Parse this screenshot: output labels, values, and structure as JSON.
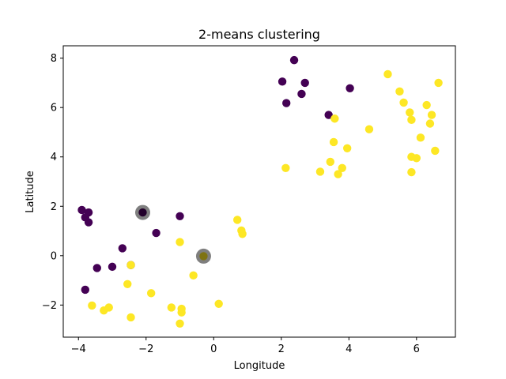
{
  "chart_data": {
    "type": "scatter",
    "title": "2-means clustering",
    "xlabel": "Longitude",
    "ylabel": "Latitude",
    "xlim": [
      -4.45,
      7.15
    ],
    "ylim": [
      -3.3,
      8.5
    ],
    "xticks": [
      -4,
      -2,
      0,
      2,
      4,
      6
    ],
    "yticks": [
      -2,
      0,
      2,
      4,
      6,
      8
    ],
    "grid": false,
    "colors": {
      "cluster_0": "#440154",
      "cluster_1": "#fde725",
      "centroid": "#000000"
    },
    "series": [
      {
        "cluster": 0,
        "color": "#440154",
        "points": [
          [
            -3.9,
            1.85
          ],
          [
            -3.8,
            1.55
          ],
          [
            -3.7,
            1.75
          ],
          [
            -3.7,
            1.35
          ],
          [
            -3.45,
            -0.5
          ],
          [
            -3.0,
            -0.45
          ],
          [
            -2.7,
            0.3
          ],
          [
            -2.45,
            -0.38
          ],
          [
            -2.1,
            1.75
          ],
          [
            -1.7,
            0.92
          ],
          [
            -1.0,
            1.6
          ],
          [
            -3.8,
            -1.38
          ],
          [
            2.03,
            7.05
          ],
          [
            2.15,
            6.18
          ],
          [
            2.38,
            7.92
          ],
          [
            2.6,
            6.55
          ],
          [
            2.7,
            7.0
          ],
          [
            3.4,
            5.7
          ],
          [
            4.03,
            6.78
          ]
        ]
      },
      {
        "cluster": 1,
        "color": "#fde725",
        "points": [
          [
            -3.6,
            -2.02
          ],
          [
            -3.25,
            -2.22
          ],
          [
            -3.1,
            -2.1
          ],
          [
            -2.55,
            -1.15
          ],
          [
            -2.45,
            -2.5
          ],
          [
            -2.45,
            -0.38
          ],
          [
            -1.85,
            -1.52
          ],
          [
            -1.25,
            -2.1
          ],
          [
            -1.0,
            -2.75
          ],
          [
            -0.95,
            -2.15
          ],
          [
            -0.95,
            -2.3
          ],
          [
            -1.0,
            0.55
          ],
          [
            -0.6,
            -0.8
          ],
          [
            0.15,
            -1.95
          ],
          [
            0.7,
            1.45
          ],
          [
            0.82,
            1.02
          ],
          [
            0.85,
            0.88
          ],
          [
            -0.3,
            -0.02
          ],
          [
            2.13,
            3.55
          ],
          [
            3.15,
            3.4
          ],
          [
            3.45,
            3.8
          ],
          [
            3.55,
            4.6
          ],
          [
            3.58,
            5.55
          ],
          [
            3.68,
            3.3
          ],
          [
            3.8,
            3.55
          ],
          [
            3.95,
            4.35
          ],
          [
            4.6,
            5.12
          ],
          [
            5.15,
            7.35
          ],
          [
            5.5,
            6.65
          ],
          [
            5.62,
            6.2
          ],
          [
            5.8,
            5.8
          ],
          [
            5.85,
            5.5
          ],
          [
            5.85,
            4.0
          ],
          [
            5.85,
            3.38
          ],
          [
            6.0,
            3.95
          ],
          [
            6.12,
            4.78
          ],
          [
            6.3,
            6.1
          ],
          [
            6.4,
            5.35
          ],
          [
            6.45,
            5.7
          ],
          [
            6.55,
            4.25
          ],
          [
            6.65,
            7.0
          ]
        ]
      }
    ],
    "centroids": [
      [
        -2.1,
        1.75
      ],
      [
        -0.3,
        -0.02
      ]
    ]
  }
}
